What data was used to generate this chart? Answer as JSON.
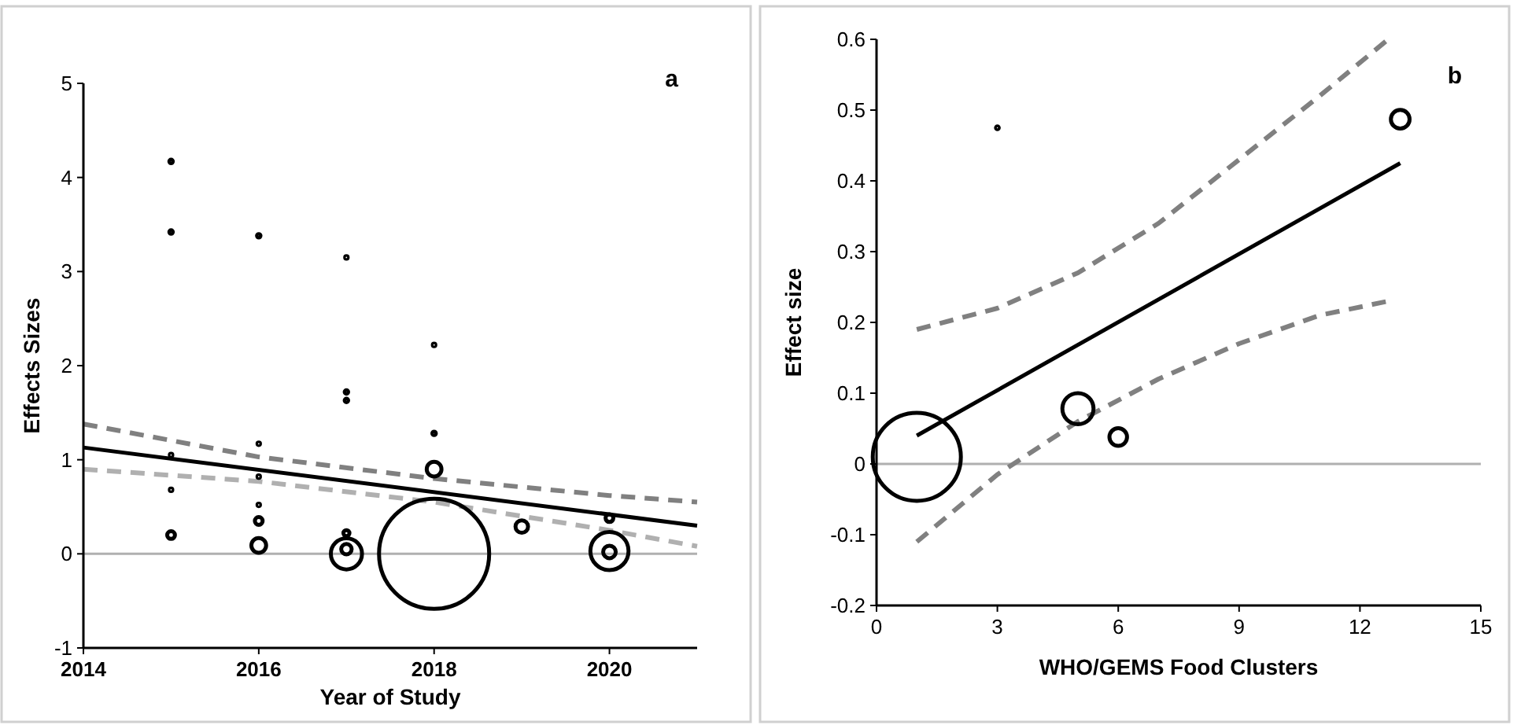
{
  "chart_data": [
    {
      "type": "bubble",
      "xlabel": "Year of Study",
      "ylabel": "Effects Sizes",
      "xlim": [
        2014,
        2021
      ],
      "xticks": [
        2014,
        2016,
        2018,
        2020
      ],
      "ylim": [
        -1,
        5
      ],
      "yticks": [
        -1,
        0,
        1,
        2,
        3,
        4,
        5
      ],
      "grid": false,
      "annotations": [
        "a"
      ],
      "ref_lines": [
        {
          "axis": "y",
          "value": 0,
          "color": "#b0b0b0"
        }
      ],
      "series": [
        {
          "color": "#000000",
          "x": [
            2015,
            2015,
            2015,
            2015,
            2015,
            2016,
            2016,
            2016,
            2016,
            2016,
            2016,
            2017,
            2017,
            2017,
            2017,
            2017,
            2017,
            2018,
            2018,
            2018,
            2018,
            2019,
            2020,
            2020,
            2020
          ],
          "values": [
            4.17,
            3.42,
            1.05,
            0.68,
            0.2,
            3.38,
            1.17,
            0.82,
            0.52,
            0.35,
            0.09,
            3.15,
            1.72,
            1.63,
            0.22,
            0.05,
            0.0,
            2.22,
            1.28,
            0.9,
            0.0,
            0.29,
            0.38,
            0.03,
            0.02
          ],
          "sizes": [
            0.001,
            0.001,
            0.0005,
            0.0005,
            0.005,
            0.001,
            0.0005,
            0.0005,
            0.0005,
            0.005,
            0.018,
            0.0005,
            0.001,
            0.001,
            0.003,
            0.009,
            0.08,
            0.0005,
            0.001,
            0.018,
            1,
            0.013,
            0.005,
            0.12,
            0.013
          ]
        },
        {
          "type": "line",
          "color": "#000000",
          "line_style": "solid",
          "x": [
            2014,
            2021
          ],
          "values": [
            1.13,
            0.3
          ]
        },
        {
          "type": "line",
          "color": "#808080",
          "line_style": "dashed",
          "x": [
            2014,
            2016,
            2018,
            2020,
            2021
          ],
          "values": [
            1.38,
            1.03,
            0.8,
            0.62,
            0.55
          ]
        },
        {
          "type": "line",
          "color": "#b0b0b0",
          "line_style": "dashed",
          "x": [
            2014,
            2016,
            2018,
            2020,
            2021
          ],
          "values": [
            0.9,
            0.77,
            0.55,
            0.25,
            0.08
          ]
        }
      ]
    },
    {
      "type": "bubble",
      "xlabel": "WHO/GEMS Food Clusters",
      "ylabel": "Effect size",
      "xlim": [
        0,
        15
      ],
      "xticks": [
        0,
        3,
        6,
        9,
        12,
        15
      ],
      "ylim": [
        -0.2,
        0.6
      ],
      "yticks": [
        -0.2,
        -0.1,
        0,
        0.1,
        0.2,
        0.3,
        0.4,
        0.5,
        0.6
      ],
      "grid": false,
      "annotations": [
        "b"
      ],
      "ref_lines": [
        {
          "axis": "y",
          "value": 0,
          "color": "#b0b0b0"
        }
      ],
      "series": [
        {
          "color": "#000000",
          "x": [
            1,
            3,
            5,
            6,
            13
          ],
          "values": [
            0.01,
            0.475,
            0.078,
            0.038,
            0.487
          ],
          "sizes": [
            1,
            0.001,
            0.125,
            0.04,
            0.045
          ]
        },
        {
          "type": "line",
          "color": "#000000",
          "line_style": "solid",
          "x": [
            1,
            13
          ],
          "values": [
            0.04,
            0.425
          ]
        },
        {
          "type": "line",
          "color": "#808080",
          "line_style": "dashed",
          "x": [
            1,
            3,
            5,
            7,
            9,
            11,
            12.7
          ],
          "values": [
            0.19,
            0.22,
            0.27,
            0.34,
            0.43,
            0.52,
            0.6
          ]
        },
        {
          "type": "line",
          "color": "#808080",
          "line_style": "dashed",
          "x": [
            1,
            3,
            5,
            7,
            9,
            11,
            12.7
          ],
          "values": [
            -0.11,
            -0.015,
            0.06,
            0.12,
            0.17,
            0.21,
            0.23
          ]
        }
      ]
    }
  ]
}
